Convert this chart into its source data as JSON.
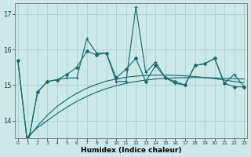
{
  "x": [
    0,
    1,
    2,
    3,
    4,
    5,
    6,
    7,
    8,
    9,
    10,
    11,
    12,
    13,
    14,
    15,
    16,
    17,
    18,
    19,
    20,
    21,
    22,
    23
  ],
  "line_jagged": [
    15.7,
    13.3,
    14.8,
    15.1,
    15.15,
    15.2,
    15.2,
    16.3,
    15.9,
    15.9,
    15.1,
    15.1,
    17.2,
    15.35,
    15.65,
    15.2,
    15.05,
    15.0,
    15.55,
    15.6,
    15.75,
    15.05,
    15.3,
    14.95
  ],
  "line_smooth": [
    15.7,
    13.3,
    14.8,
    15.1,
    15.15,
    15.3,
    15.5,
    15.95,
    15.85,
    15.9,
    15.2,
    15.45,
    15.75,
    15.1,
    15.55,
    15.2,
    15.1,
    15.0,
    15.55,
    15.6,
    15.75,
    15.05,
    14.95,
    14.95
  ],
  "trend_lin": [
    13.3,
    13.55,
    13.8,
    14.0,
    14.2,
    14.38,
    14.54,
    14.68,
    14.8,
    14.9,
    14.98,
    15.05,
    15.1,
    15.14,
    15.17,
    15.19,
    15.2,
    15.21,
    15.21,
    15.21,
    15.2,
    15.19,
    15.18,
    15.17
  ],
  "trend_log": [
    13.1,
    13.5,
    13.85,
    14.15,
    14.4,
    14.6,
    14.77,
    14.91,
    15.02,
    15.11,
    15.17,
    15.22,
    15.25,
    15.27,
    15.28,
    15.28,
    15.27,
    15.26,
    15.24,
    15.21,
    15.18,
    15.14,
    15.1,
    15.06
  ],
  "bg_color": "#cce8e8",
  "line_color": "#1a6e6e",
  "grid_color": "#aacfcf",
  "xlabel": "Humidex (Indice chaleur)",
  "ylim": [
    13.5,
    17.3
  ],
  "ytick_min": 14,
  "ytick_max": 17,
  "ytick_step": 1
}
